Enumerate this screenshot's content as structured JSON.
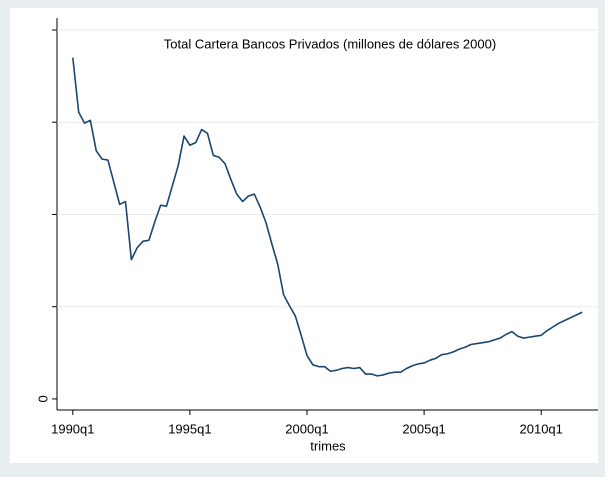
{
  "chart_data": {
    "type": "line",
    "title": "Total Cartera Bancos Privados (millones de dólares 2000)",
    "x_label": "trimes",
    "x": [
      120,
      121,
      122,
      123,
      124,
      125,
      126,
      127,
      128,
      129,
      130,
      131,
      132,
      133,
      134,
      135,
      136,
      137,
      138,
      139,
      140,
      141,
      142,
      143,
      144,
      145,
      146,
      147,
      148,
      149,
      150,
      151,
      152,
      153,
      154,
      155,
      156,
      157,
      158,
      159,
      160,
      161,
      162,
      163,
      164,
      165,
      166,
      167,
      168,
      169,
      170,
      171,
      172,
      173,
      174,
      175,
      176,
      177,
      178,
      179,
      180,
      181,
      182,
      183,
      184,
      185,
      186,
      187,
      188,
      189,
      190,
      191,
      192,
      193,
      194,
      195,
      196,
      197,
      198,
      199,
      200,
      201,
      202,
      203,
      204,
      205,
      206,
      207
    ],
    "series": [
      {
        "color": "#1a476f",
        "values": [
          3.7,
          3.11,
          2.99,
          3.02,
          2.69,
          2.6,
          2.59,
          2.35,
          2.11,
          2.14,
          1.51,
          1.64,
          1.71,
          1.72,
          1.92,
          2.1,
          2.09,
          2.31,
          2.53,
          2.85,
          2.75,
          2.78,
          2.92,
          2.88,
          2.64,
          2.62,
          2.55,
          2.38,
          2.22,
          2.14,
          2.2,
          2.22,
          2.08,
          1.91,
          1.68,
          1.46,
          1.13,
          1.01,
          0.9,
          0.69,
          0.47,
          0.37,
          0.35,
          0.35,
          0.3,
          0.31,
          0.33,
          0.34,
          0.33,
          0.34,
          0.27,
          0.27,
          0.25,
          0.26,
          0.28,
          0.29,
          0.29,
          0.33,
          0.36,
          0.38,
          0.39,
          0.42,
          0.44,
          0.48,
          0.49,
          0.51,
          0.54,
          0.56,
          0.59,
          0.6,
          0.61,
          0.62,
          0.64,
          0.66,
          0.7,
          0.73,
          0.68,
          0.66,
          0.67,
          0.68,
          0.69,
          0.74,
          0.78,
          0.82,
          0.85,
          0.88,
          0.91,
          0.94
        ]
      }
    ],
    "xlim": [
      117.3,
      209.7
    ],
    "xticks": [
      {
        "value": 120,
        "label": "1990q1"
      },
      {
        "value": 140,
        "label": "1995q1"
      },
      {
        "value": 160,
        "label": "2000q1"
      },
      {
        "value": 180,
        "label": "2005q1"
      },
      {
        "value": 200,
        "label": "2010q1"
      }
    ],
    "ylim": [
      -0.12,
      4.13
    ],
    "yticks": [
      0
    ],
    "y_unlabeled_ticks": [
      1,
      2,
      3,
      4
    ],
    "grid": true
  }
}
